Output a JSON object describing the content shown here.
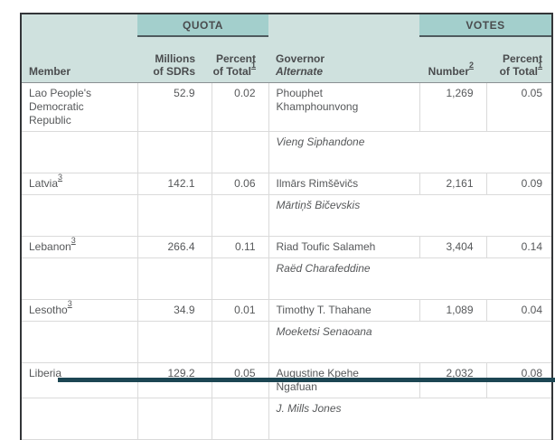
{
  "table": {
    "header": {
      "member": "Member",
      "quota_band": "QUOTA",
      "votes_band": "VOTES",
      "sdr_line1": "Millions",
      "sdr_line2": "of SDRs",
      "pct_line1": "Percent",
      "pct_line2": "of Total",
      "pct_note": "1",
      "governor_line1": "Governor",
      "governor_line2": "Alternate",
      "number_label": "Number",
      "number_note": "2"
    },
    "rows": [
      {
        "member": "Lao People's Democratic Republic",
        "note": "",
        "sdr": "52.9",
        "quota_pct": "0.02",
        "governor": "Phouphet Khamphounvong",
        "alternate": "Vieng Siphandone",
        "votes": "1,269",
        "votes_pct": "0.05"
      },
      {
        "member": "Latvia",
        "note": "3",
        "sdr": "142.1",
        "quota_pct": "0.06",
        "governor": "Ilmārs Rimšēvičs",
        "alternate": "Mārtiņš Bičevskis",
        "votes": "2,161",
        "votes_pct": "0.09"
      },
      {
        "member": "Lebanon",
        "note": "3",
        "sdr": "266.4",
        "quota_pct": "0.11",
        "governor": "Riad Toufic Salameh",
        "alternate": "Raëd Charafeddine",
        "votes": "3,404",
        "votes_pct": "0.14"
      },
      {
        "member": "Lesotho",
        "note": "3",
        "sdr": "34.9",
        "quota_pct": "0.01",
        "governor": "Timothy T. Thahane",
        "alternate": "Moeketsi Senaoana",
        "votes": "1,089",
        "votes_pct": "0.04"
      },
      {
        "member": "Liberia",
        "note": "",
        "sdr": "129.2",
        "quota_pct": "0.05",
        "governor": "Augustine Kpehe Ngafuan",
        "alternate": "J. Mills Jones",
        "votes": "2,032",
        "votes_pct": "0.08"
      }
    ]
  },
  "colors": {
    "header_light_teal": "#cfe1de",
    "band_dark_teal": "#a3cfcc",
    "band_underline": "#4e5a5e",
    "cell_border": "#dadada",
    "outer_border": "#333538",
    "bottom_bar": "#1c4653",
    "text": "#56585a"
  }
}
